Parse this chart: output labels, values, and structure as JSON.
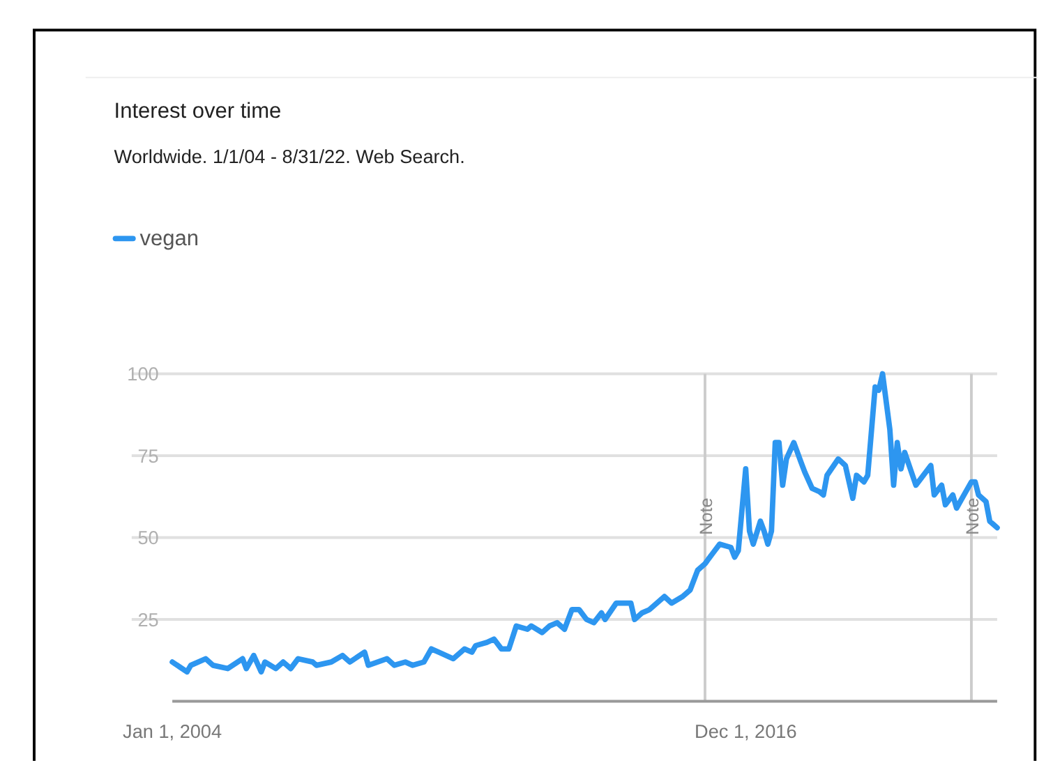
{
  "chart_data": {
    "type": "line",
    "title": "Interest over time",
    "subtitle": "Worldwide. 1/1/04 - 8/31/22. Web Search.",
    "x": [
      "2004-01",
      "2004-05",
      "2004-06",
      "2004-10",
      "2004-12",
      "2005-04",
      "2005-08",
      "2005-09",
      "2005-11",
      "2006-01",
      "2006-02",
      "2006-05",
      "2006-07",
      "2006-09",
      "2006-11",
      "2007-03",
      "2007-04",
      "2007-08",
      "2007-11",
      "2008-01",
      "2008-05",
      "2008-06",
      "2008-11",
      "2009-01",
      "2009-04",
      "2009-06",
      "2009-09",
      "2009-11",
      "2010-01",
      "2010-05",
      "2010-08",
      "2010-10",
      "2010-11",
      "2011-02",
      "2011-04",
      "2011-06",
      "2011-08",
      "2011-10",
      "2012-01",
      "2012-02",
      "2012-05",
      "2012-07",
      "2012-09",
      "2012-11",
      "2013-01",
      "2013-03",
      "2013-05",
      "2013-07",
      "2013-09",
      "2013-10",
      "2014-01",
      "2014-05",
      "2014-06",
      "2014-08",
      "2014-10",
      "2015-02",
      "2015-04",
      "2015-07",
      "2015-09",
      "2015-11",
      "2016-01",
      "2016-03",
      "2016-05",
      "2016-08",
      "2016-09",
      "2016-10",
      "2016-12",
      "2017-01",
      "2017-02",
      "2017-04",
      "2017-05",
      "2017-06",
      "2017-07",
      "2017-08",
      "2017-09",
      "2017-10",
      "2017-11",
      "2018-01",
      "2018-03",
      "2018-04",
      "2018-06",
      "2018-08",
      "2018-09",
      "2018-10",
      "2019-01",
      "2019-03",
      "2019-05",
      "2019-06",
      "2019-08",
      "2019-09",
      "2019-11",
      "2019-12",
      "2020-01",
      "2020-03",
      "2020-04",
      "2020-05",
      "2020-06",
      "2020-07",
      "2020-10",
      "2021-02",
      "2021-03",
      "2021-05",
      "2021-06",
      "2021-08",
      "2021-09",
      "2021-11",
      "2022-01",
      "2022-02",
      "2022-03",
      "2022-05",
      "2022-06",
      "2022-07",
      "2022-08"
    ],
    "series": [
      {
        "name": "vegan",
        "color": "#2d96f0",
        "values": [
          12,
          9,
          11,
          13,
          11,
          10,
          13,
          10,
          14,
          9,
          12,
          10,
          12,
          10,
          13,
          12,
          11,
          12,
          14,
          12,
          15,
          11,
          13,
          11,
          12,
          11,
          12,
          16,
          15,
          13,
          16,
          15,
          17,
          18,
          19,
          16,
          16,
          23,
          22,
          23,
          21,
          23,
          24,
          22,
          28,
          28,
          25,
          24,
          27,
          25,
          30,
          30,
          25,
          27,
          28,
          32,
          30,
          32,
          34,
          40,
          42,
          45,
          48,
          47,
          44,
          46,
          71,
          52,
          48,
          55,
          52,
          48,
          52,
          79,
          79,
          66,
          74,
          79,
          73,
          70,
          65,
          64,
          63,
          69,
          74,
          72,
          62,
          69,
          67,
          69,
          96,
          95,
          100,
          83,
          66,
          79,
          71,
          76,
          66,
          72,
          63,
          66,
          60,
          63,
          59,
          63,
          67,
          67,
          63,
          61,
          55,
          54,
          53
        ]
      }
    ],
    "xlim": [
      "2004-01",
      "2022-08"
    ],
    "xticks": [
      {
        "value": "2004-01-01",
        "label": "Jan 1, 2004"
      },
      {
        "value": "2016-12-01",
        "label": "Dec 1, 2016"
      }
    ],
    "ylim": [
      0,
      100
    ],
    "yticks": [
      25,
      50,
      75,
      100
    ],
    "grid": "y",
    "legend": "top left",
    "line_style": "solid",
    "marker": "none",
    "ref_lines": [
      {
        "axis": "x",
        "value": "2016-01",
        "label": "Note",
        "color": "#cccccc"
      },
      {
        "axis": "x",
        "value": "2022-01",
        "label": "Note",
        "color": "#cccccc"
      }
    ]
  }
}
